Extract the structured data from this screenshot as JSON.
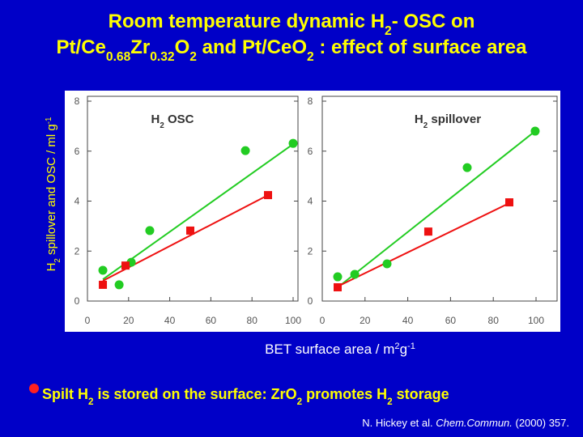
{
  "slide": {
    "title_lines": [
      [
        "Room temperature dynamic H",
        {
          "text": "2",
          "script": "sub"
        },
        "- OSC on"
      ],
      [
        "Pt/Ce",
        {
          "text": "0.68",
          "script": "sub"
        },
        "Zr",
        {
          "text": "0.32",
          "script": "sub"
        },
        "O",
        {
          "text": "2",
          "script": "sub"
        },
        " and Pt/CeO",
        {
          "text": "2",
          "script": "sub"
        },
        " : effect of surface area"
      ]
    ],
    "y_label": [
      "H",
      {
        "text": "2",
        "script": "sub"
      },
      " spillover and OSC  / ml g",
      {
        "text": "-1",
        "script": "sup"
      }
    ],
    "x_label": [
      "BET surface area / m",
      {
        "text": "2",
        "script": "sup"
      },
      "g",
      {
        "text": "-1",
        "script": "sup"
      }
    ],
    "bullet": [
      "Spilt H",
      {
        "text": "2",
        "script": "sub"
      },
      " is stored on the surface: ZrO",
      {
        "text": "2",
        "script": "sub"
      },
      " promotes H",
      {
        "text": "2",
        "script": "sub"
      },
      " storage"
    ],
    "citation": [
      "N. Hickey et al. ",
      {
        "text": "Chem.Commun.",
        "script": "italic"
      },
      " (2000) 357."
    ]
  },
  "chart_data": [
    {
      "type": "scatter",
      "title": [
        "H",
        {
          "text": "2",
          "script": "sub"
        },
        " OSC"
      ],
      "xlim": [
        0,
        100
      ],
      "xticks": [
        0,
        20,
        40,
        60,
        80,
        100
      ],
      "ylim": [
        0,
        8
      ],
      "yticks": [
        0,
        2,
        4,
        6,
        8
      ],
      "series": [
        {
          "color": "#22cc22",
          "marker": "circle",
          "x": [
            7.5,
            15.4,
            21.3,
            30.3,
            76.8,
            100
          ],
          "values": [
            1.23,
            0.65,
            1.55,
            2.82,
            6.02,
            6.31
          ]
        },
        {
          "color": "#ee1111",
          "marker": "square",
          "x": [
            7.5,
            18.5,
            50,
            87.8
          ],
          "values": [
            0.65,
            1.42,
            2.82,
            4.24
          ]
        }
      ],
      "fits": [
        {
          "color": "#22cc22",
          "x": [
            7.5,
            100
          ],
          "values": [
            0.87,
            6.28
          ]
        },
        {
          "color": "#ee1111",
          "x": [
            7.5,
            87.8
          ],
          "values": [
            0.81,
            4.24
          ]
        }
      ]
    },
    {
      "type": "scatter",
      "title": [
        "H",
        {
          "text": "2",
          "script": "sub"
        },
        " spillover"
      ],
      "xlim": [
        0,
        100
      ],
      "xticks": [
        0,
        20,
        40,
        60,
        80,
        100
      ],
      "ylim": [
        0,
        8
      ],
      "yticks": [
        0,
        2,
        4,
        6,
        8
      ],
      "series": [
        {
          "color": "#22cc22",
          "marker": "circle",
          "x": [
            7.2,
            15.2,
            30.3,
            67.8,
            99.6
          ],
          "values": [
            0.97,
            1.07,
            1.49,
            5.34,
            6.8
          ]
        },
        {
          "color": "#ee1111",
          "marker": "square",
          "x": [
            7.2,
            49.6,
            87.5
          ],
          "values": [
            0.55,
            2.78,
            3.95
          ]
        }
      ],
      "fits": [
        {
          "color": "#22cc22",
          "x": [
            6.4,
            99.6
          ],
          "values": [
            0.49,
            6.8
          ]
        },
        {
          "color": "#ee1111",
          "x": [
            6.4,
            87.5
          ],
          "values": [
            0.55,
            3.92
          ]
        }
      ]
    }
  ]
}
